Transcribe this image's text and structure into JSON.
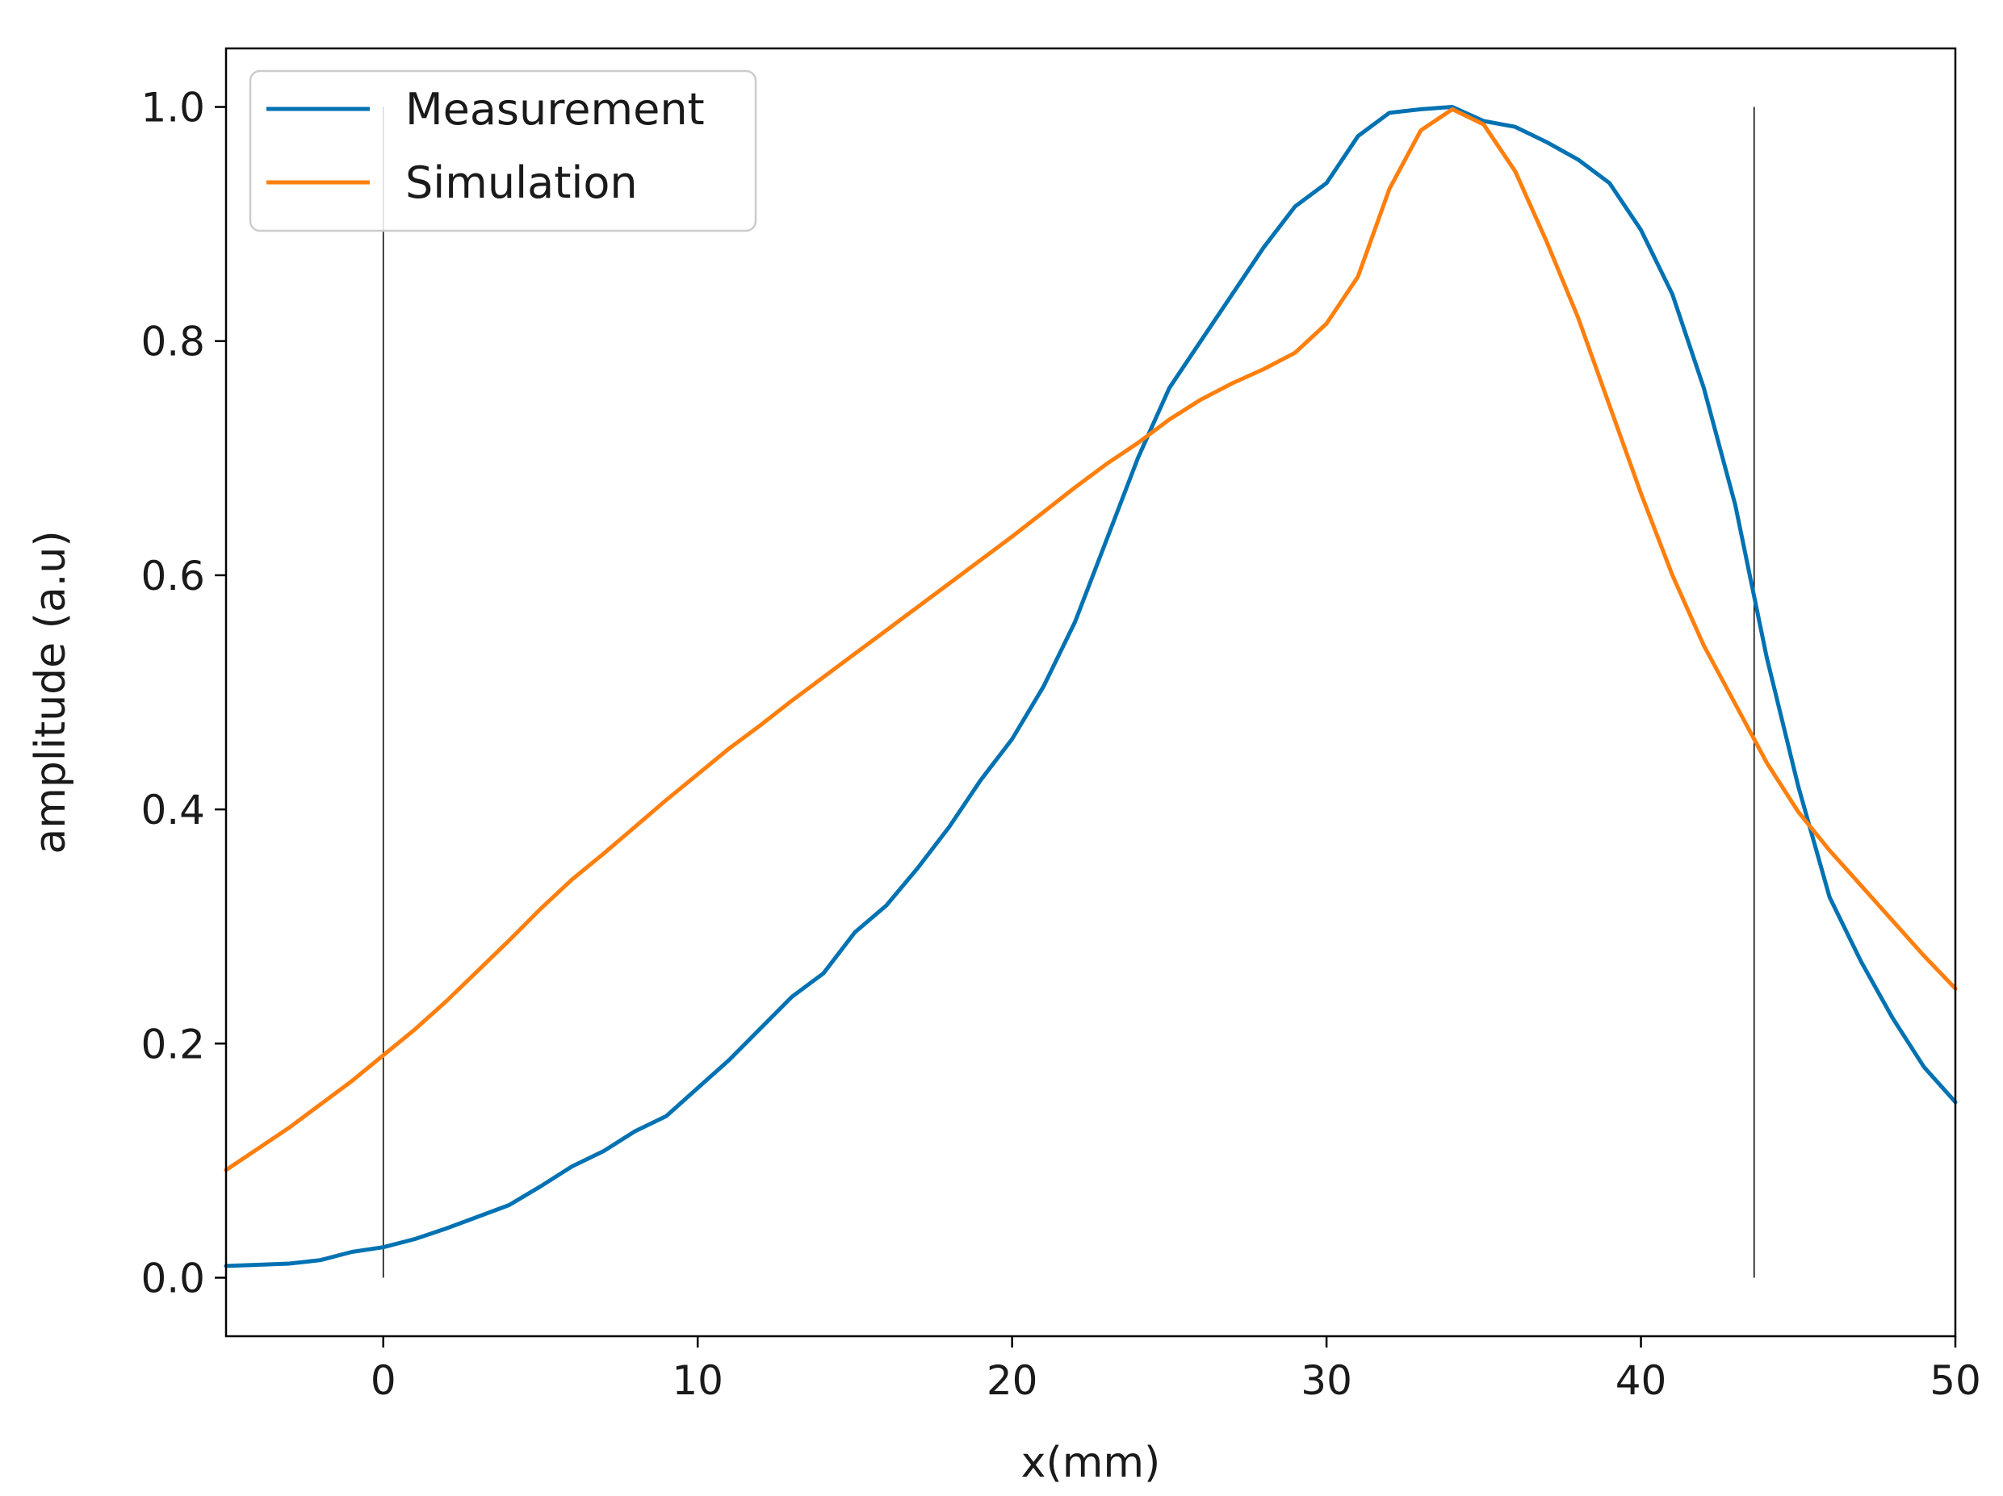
{
  "chart_data": {
    "type": "line",
    "title": "",
    "xlabel": "x(mm)",
    "ylabel": "amplitude (a.u)",
    "xlim": [
      -5,
      50
    ],
    "ylim": [
      -0.05,
      1.05
    ],
    "xticks": [
      0,
      10,
      20,
      30,
      40,
      50
    ],
    "yticks": [
      0.0,
      0.2,
      0.4,
      0.6,
      0.8,
      1.0
    ],
    "xtick_labels": [
      "0",
      "10",
      "20",
      "30",
      "40",
      "50"
    ],
    "ytick_labels": [
      "0.0",
      "0.2",
      "0.4",
      "0.6",
      "0.8",
      "1.0"
    ],
    "grid": false,
    "legend_position": "top-left",
    "vlines": [
      {
        "x": 0,
        "ymin": 0,
        "ymax": 1.0
      },
      {
        "x": 43.6,
        "ymin": 0,
        "ymax": 1.0
      }
    ],
    "series": [
      {
        "name": "Measurement",
        "color": "#0072b2",
        "x": [
          -5,
          -4,
          -3,
          -2,
          -1,
          0,
          1,
          2,
          3,
          4,
          5,
          6,
          7,
          8,
          9,
          10,
          11,
          12,
          13,
          14,
          15,
          16,
          17,
          18,
          19,
          20,
          21,
          22,
          23,
          24,
          25,
          26,
          27,
          28,
          29,
          30,
          31,
          32,
          33,
          34,
          35,
          36,
          37,
          38,
          39,
          40,
          41,
          42,
          43,
          44,
          45,
          46,
          47,
          48,
          49,
          50
        ],
        "y": [
          0.01,
          0.011,
          0.012,
          0.015,
          0.022,
          0.026,
          0.033,
          0.042,
          0.052,
          0.062,
          0.078,
          0.095,
          0.108,
          0.125,
          0.138,
          0.162,
          0.186,
          0.213,
          0.24,
          0.26,
          0.295,
          0.318,
          0.35,
          0.385,
          0.425,
          0.46,
          0.505,
          0.56,
          0.63,
          0.7,
          0.76,
          0.8,
          0.84,
          0.88,
          0.915,
          0.935,
          0.975,
          0.995,
          0.998,
          1.0,
          0.988,
          0.983,
          0.97,
          0.955,
          0.935,
          0.895,
          0.84,
          0.76,
          0.66,
          0.53,
          0.42,
          0.325,
          0.27,
          0.222,
          0.18,
          0.15
        ]
      },
      {
        "name": "Simulation",
        "color": "#ff7f0e",
        "x": [
          -5,
          -4,
          -3,
          -2,
          -1,
          0,
          1,
          2,
          3,
          4,
          5,
          6,
          7,
          8,
          9,
          10,
          11,
          12,
          13,
          14,
          15,
          16,
          17,
          18,
          19,
          20,
          21,
          22,
          23,
          24,
          25,
          26,
          27,
          28,
          29,
          30,
          31,
          32,
          33,
          34,
          35,
          36,
          37,
          38,
          39,
          40,
          41,
          42,
          43,
          44,
          45,
          46,
          47,
          48,
          49,
          50
        ],
        "y": [
          0.092,
          0.11,
          0.128,
          0.148,
          0.168,
          0.19,
          0.212,
          0.236,
          0.262,
          0.288,
          0.315,
          0.34,
          0.362,
          0.385,
          0.408,
          0.43,
          0.452,
          0.472,
          0.493,
          0.513,
          0.533,
          0.553,
          0.573,
          0.593,
          0.613,
          0.633,
          0.654,
          0.675,
          0.695,
          0.713,
          0.733,
          0.75,
          0.764,
          0.776,
          0.79,
          0.815,
          0.855,
          0.93,
          0.98,
          0.998,
          0.985,
          0.945,
          0.885,
          0.82,
          0.745,
          0.67,
          0.6,
          0.54,
          0.49,
          0.44,
          0.398,
          0.365,
          0.335,
          0.305,
          0.275,
          0.247
        ]
      }
    ]
  }
}
